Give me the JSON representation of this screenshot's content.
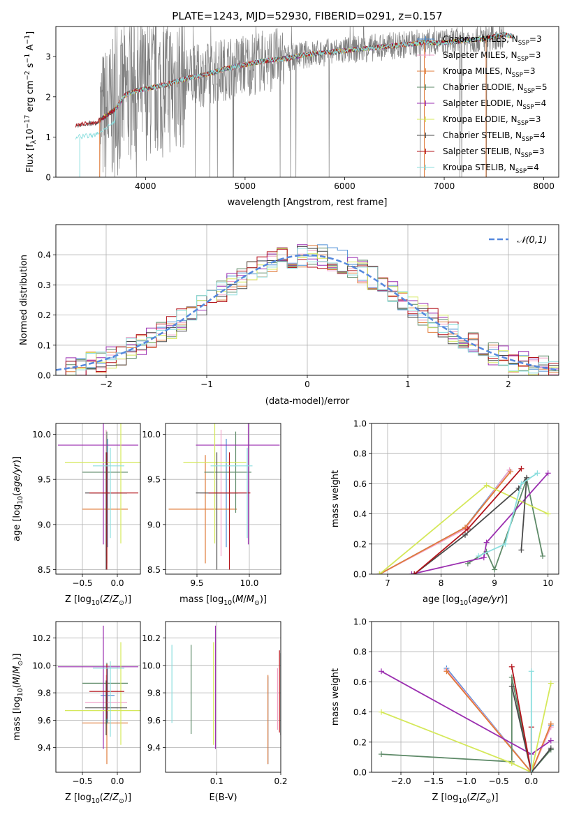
{
  "colors": {
    "Chabrier MILES": "#4c8fd6",
    "Salpeter MILES": "#f2a2c8",
    "Kroupa MILES": "#e07b39",
    "Chabrier ELODIE": "#5e8a68",
    "Salpeter ELODIE": "#9b2fb0",
    "Kroupa ELODIE": "#d5e85a",
    "Chabrier STELIB": "#4a4a4a",
    "Salpeter STELIB": "#b3141b",
    "Kroupa STELIB": "#8bdede",
    "data": "#808080",
    "normal": "#5588dd"
  },
  "chart_data": [
    {
      "id": "spectrum",
      "type": "line",
      "title": "PLATE=1243, MJD=52930, FIBERID=0291, z=0.157",
      "xlabel": "wavelength [Angstrom, rest frame]",
      "ylabel": "Flux [f_λ 10^-17 erg cm^-2 s^-1 A^-1]",
      "xlim": [
        3100,
        8150
      ],
      "ylim": [
        0,
        3.75
      ],
      "xticks": [
        4000,
        5000,
        6000,
        7000,
        8000
      ],
      "yticks": [
        0,
        1,
        2,
        3
      ],
      "legend_position": "top-right",
      "legend": [
        {
          "name": "Chabrier MILES",
          "nssp": "3"
        },
        {
          "name": "Salpeter MILES",
          "nssp": "3"
        },
        {
          "name": "Kroupa MILES",
          "nssp": "3"
        },
        {
          "name": "Chabrier ELODIE",
          "nssp": "5"
        },
        {
          "name": "Salpeter ELODIE",
          "nssp": "4"
        },
        {
          "name": "Kroupa ELODIE",
          "nssp": "3"
        },
        {
          "name": "Chabrier STELIB",
          "nssp": "4"
        },
        {
          "name": "Salpeter STELIB",
          "nssp": "3"
        },
        {
          "name": "Kroupa STELIB",
          "nssp": "4"
        }
      ],
      "model_continuum": {
        "x": [
          3300,
          3500,
          3700,
          3800,
          3900,
          4000,
          4200,
          4400,
          4600,
          4800,
          5000,
          5200,
          5400,
          5600,
          5800,
          6000,
          6200,
          6400,
          6600,
          6800,
          7000,
          7200,
          7400,
          7600,
          7800
        ],
        "y": [
          1.3,
          1.35,
          1.7,
          2.05,
          2.15,
          2.2,
          2.3,
          2.45,
          2.55,
          2.7,
          2.8,
          2.9,
          2.95,
          3.05,
          3.1,
          3.15,
          3.2,
          3.25,
          3.3,
          3.35,
          3.35,
          3.4,
          3.45,
          3.55,
          3.45
        ]
      }
    },
    {
      "id": "residuals",
      "type": "line",
      "xlabel": "(data-model)/error",
      "ylabel": "Normed distribution",
      "xlim": [
        -2.5,
        2.5
      ],
      "ylim": [
        0,
        0.5
      ],
      "xticks": [
        -2,
        -1,
        0,
        1,
        2
      ],
      "yticks": [
        0.0,
        0.1,
        0.2,
        0.3,
        0.4
      ],
      "grid": true,
      "legend_position": "top-right",
      "legend": [
        "𝒩(0,1)"
      ],
      "normal": {
        "mean": 0,
        "sigma": 1
      }
    },
    {
      "id": "z-age",
      "type": "scatter",
      "xlabel": "Z [log10(Z/Z⊙)]",
      "ylabel": "age [log10(age/yr)]",
      "xlim": [
        -0.88,
        0.33
      ],
      "ylim": [
        8.45,
        10.12
      ],
      "xticks": [
        -0.5,
        0.0
      ],
      "yticks": [
        8.5,
        9.0,
        9.5,
        10.0
      ],
      "grid": true,
      "points": [
        {
          "m": "Chabrier MILES",
          "x": -0.14,
          "xerr": [
            0.08,
            0.1
          ],
          "y": 9.35,
          "yerr": [
            0.6,
            0.6
          ]
        },
        {
          "m": "Salpeter MILES",
          "x": -0.16,
          "xerr": [
            0.3,
            0.3
          ],
          "y": 9.35,
          "yerr": [
            0.7,
            0.7
          ]
        },
        {
          "m": "Kroupa MILES",
          "x": -0.15,
          "xerr": [
            0.35,
            0.3
          ],
          "y": 9.17,
          "yerr": [
            0.6,
            0.6
          ]
        },
        {
          "m": "Chabrier ELODIE",
          "x": -0.15,
          "xerr": [
            0.35,
            0.3
          ],
          "y": 9.58,
          "yerr": [
            0.45,
            0.45
          ]
        },
        {
          "m": "Salpeter ELODIE",
          "x": -0.2,
          "xerr": [
            0.65,
            0.5
          ],
          "y": 9.88,
          "yerr": [
            1.1,
            0.5
          ]
        },
        {
          "m": "Kroupa ELODIE",
          "x": 0.05,
          "xerr": [
            0.8,
            0.3
          ],
          "y": 9.69,
          "yerr": [
            0.9,
            0.45
          ]
        },
        {
          "m": "Chabrier STELIB",
          "x": -0.16,
          "xerr": [
            0.3,
            0.3
          ],
          "y": 9.35,
          "yerr": [
            0.85,
            0.45
          ]
        },
        {
          "m": "Salpeter STELIB",
          "x": -0.15,
          "xerr": [
            0.25,
            0.45
          ],
          "y": 9.35,
          "yerr": [
            0.85,
            0.45
          ]
        },
        {
          "m": "Kroupa STELIB",
          "x": -0.1,
          "xerr": [
            0.25,
            0.2
          ],
          "y": 9.65,
          "yerr": [
            0.8,
            0.2
          ]
        }
      ]
    },
    {
      "id": "mass-age",
      "type": "scatter",
      "xlabel": "mass [log10(M/M⊙)]",
      "ylabel": "",
      "xlim": [
        9.2,
        10.3
      ],
      "ylim": [
        8.45,
        10.12
      ],
      "xticks": [
        9.5,
        10.0
      ],
      "yticks": [
        8.5,
        9.0,
        9.5,
        10.0
      ],
      "grid": true,
      "points": [
        {
          "m": "Chabrier MILES",
          "x": 9.78,
          "xerr": [
            0.2,
            0.2
          ],
          "y": 9.35,
          "yerr": [
            0.6,
            0.6
          ]
        },
        {
          "m": "Salpeter MILES",
          "x": 9.73,
          "xerr": [
            0.2,
            0.2
          ],
          "y": 9.35,
          "yerr": [
            0.7,
            0.7
          ]
        },
        {
          "m": "Kroupa MILES",
          "x": 9.58,
          "xerr": [
            0.35,
            0.3
          ],
          "y": 9.17,
          "yerr": [
            0.6,
            0.6
          ]
        },
        {
          "m": "Chabrier ELODIE",
          "x": 9.87,
          "xerr": [
            0.3,
            0.15
          ],
          "y": 9.58,
          "yerr": [
            0.45,
            0.45
          ]
        },
        {
          "m": "Salpeter ELODIE",
          "x": 9.99,
          "xerr": [
            0.5,
            0.3
          ],
          "y": 9.88,
          "yerr": [
            1.1,
            0.5
          ]
        },
        {
          "m": "Kroupa ELODIE",
          "x": 9.67,
          "xerr": [
            0.3,
            0.3
          ],
          "y": 9.69,
          "yerr": [
            0.9,
            0.45
          ]
        },
        {
          "m": "Chabrier STELIB",
          "x": 9.69,
          "xerr": [
            0.2,
            0.2
          ],
          "y": 9.35,
          "yerr": [
            0.85,
            0.45
          ]
        },
        {
          "m": "Salpeter STELIB",
          "x": 9.81,
          "xerr": [
            0.2,
            0.2
          ],
          "y": 9.35,
          "yerr": [
            0.85,
            0.45
          ]
        },
        {
          "m": "Kroupa STELIB",
          "x": 9.98,
          "xerr": [
            0.35,
            0.05
          ],
          "y": 9.65,
          "yerr": [
            0.8,
            0.2
          ]
        }
      ]
    },
    {
      "id": "age-weight",
      "type": "line",
      "xlabel": "age [log10(age/yr)]",
      "ylabel": "mass weight",
      "xlim": [
        6.7,
        10.2
      ],
      "ylim": [
        0,
        1.0
      ],
      "xticks": [
        7,
        8,
        9,
        10
      ],
      "yticks": [
        0.0,
        0.2,
        0.4,
        0.6,
        0.8,
        1.0
      ],
      "grid": true,
      "series": [
        {
          "m": "Chabrier MILES",
          "x": [
            6.85,
            8.45,
            9.28
          ],
          "y": [
            0.0,
            0.31,
            0.69
          ]
        },
        {
          "m": "Salpeter MILES",
          "x": [
            6.85,
            8.45,
            9.28
          ],
          "y": [
            0.0,
            0.3,
            0.69
          ]
        },
        {
          "m": "Kroupa MILES",
          "x": [
            6.85,
            8.45,
            9.3
          ],
          "y": [
            0.0,
            0.31,
            0.68
          ]
        },
        {
          "m": "Chabrier ELODIE",
          "x": [
            8.5,
            8.85,
            9.0,
            9.6,
            9.9
          ],
          "y": [
            0.07,
            0.15,
            0.03,
            0.63,
            0.12
          ]
        },
        {
          "m": "Salpeter ELODIE",
          "x": [
            7.45,
            8.8,
            8.85,
            10.0
          ],
          "y": [
            0.0,
            0.11,
            0.21,
            0.67
          ]
        },
        {
          "m": "Kroupa ELODIE",
          "x": [
            6.85,
            8.85,
            10.0
          ],
          "y": [
            0.0,
            0.59,
            0.4
          ]
        },
        {
          "m": "Chabrier STELIB",
          "x": [
            7.5,
            8.45,
            9.45,
            9.6,
            9.5
          ],
          "y": [
            0.0,
            0.26,
            0.57,
            0.64,
            0.16
          ]
        },
        {
          "m": "Salpeter STELIB",
          "x": [
            7.5,
            8.5,
            9.5
          ],
          "y": [
            0.0,
            0.3,
            0.7
          ]
        },
        {
          "m": "Kroupa STELIB",
          "x": [
            8.7,
            9.2,
            9.5,
            9.8
          ],
          "y": [
            0.12,
            0.2,
            0.6,
            0.67
          ]
        }
      ]
    },
    {
      "id": "z-mass",
      "type": "scatter",
      "xlabel": "Z [log10(Z/Z⊙)]",
      "ylabel": "mass [log10(M/M⊙)]",
      "xlim": [
        -0.88,
        0.33
      ],
      "ylim": [
        9.22,
        10.32
      ],
      "xticks": [
        -0.5,
        0.0
      ],
      "yticks": [
        9.4,
        9.6,
        9.8,
        10.0,
        10.2
      ],
      "grid": true,
      "points": [
        {
          "m": "Chabrier MILES",
          "x": -0.14,
          "xerr": [
            0.1,
            0.1
          ],
          "y": 9.78,
          "yerr": [
            0.2,
            0.2
          ]
        },
        {
          "m": "Salpeter MILES",
          "x": -0.16,
          "xerr": [
            0.3,
            0.3
          ],
          "y": 9.73,
          "yerr": [
            0.2,
            0.2
          ]
        },
        {
          "m": "Kroupa MILES",
          "x": -0.15,
          "xerr": [
            0.35,
            0.3
          ],
          "y": 9.58,
          "yerr": [
            0.3,
            0.35
          ]
        },
        {
          "m": "Chabrier ELODIE",
          "x": -0.15,
          "xerr": [
            0.35,
            0.3
          ],
          "y": 9.87,
          "yerr": [
            0.3,
            0.15
          ]
        },
        {
          "m": "Salpeter ELODIE",
          "x": -0.2,
          "xerr": [
            0.65,
            0.5
          ],
          "y": 9.99,
          "yerr": [
            0.6,
            0.3
          ]
        },
        {
          "m": "Kroupa ELODIE",
          "x": 0.05,
          "xerr": [
            0.8,
            0.3
          ],
          "y": 9.67,
          "yerr": [
            0.25,
            0.5
          ]
        },
        {
          "m": "Chabrier STELIB",
          "x": -0.16,
          "xerr": [
            0.3,
            0.3
          ],
          "y": 9.69,
          "yerr": [
            0.2,
            0.2
          ]
        },
        {
          "m": "Salpeter STELIB",
          "x": -0.15,
          "xerr": [
            0.25,
            0.25
          ],
          "y": 9.81,
          "yerr": [
            0.2,
            0.2
          ]
        },
        {
          "m": "Kroupa STELIB",
          "x": -0.1,
          "xerr": [
            0.25,
            0.2
          ],
          "y": 9.98,
          "yerr": [
            0.5,
            0.05
          ]
        }
      ]
    },
    {
      "id": "ebv-mass",
      "type": "scatter",
      "xlabel": "E(B-V)",
      "ylabel": "",
      "xlim": [
        0.02,
        0.2
      ],
      "ylim": [
        9.22,
        10.32
      ],
      "xticks": [
        0.1,
        0.2
      ],
      "yticks": [
        9.4,
        9.6,
        9.8,
        10.0,
        10.2
      ],
      "grid": true,
      "points": [
        {
          "m": "Chabrier MILES",
          "x": 0.18,
          "xerr": [
            0,
            0
          ],
          "y": 9.78,
          "yerr": [
            0.5,
            0.14
          ]
        },
        {
          "m": "Salpeter MILES",
          "x": 0.195,
          "xerr": [
            0,
            0
          ],
          "y": 9.73,
          "yerr": [
            0.2,
            0.25
          ]
        },
        {
          "m": "Kroupa MILES",
          "x": 0.18,
          "xerr": [
            0,
            0
          ],
          "y": 9.58,
          "yerr": [
            0.3,
            0.35
          ]
        },
        {
          "m": "Chabrier ELODIE",
          "x": 0.06,
          "xerr": [
            0,
            0
          ],
          "y": 9.8,
          "yerr": [
            0.3,
            0.35
          ]
        },
        {
          "m": "Salpeter ELODIE",
          "x": 0.098,
          "xerr": [
            0,
            0
          ],
          "y": 9.99,
          "yerr": [
            0.6,
            0.3
          ]
        },
        {
          "m": "Kroupa ELODIE",
          "x": 0.095,
          "xerr": [
            0,
            0
          ],
          "y": 9.67,
          "yerr": [
            0.25,
            0.5
          ]
        },
        {
          "m": "Chabrier STELIB",
          "x": 0.2,
          "xerr": [
            0,
            0
          ],
          "y": 9.69,
          "yerr": [
            0.2,
            0.4
          ]
        },
        {
          "m": "Salpeter STELIB",
          "x": 0.198,
          "xerr": [
            0,
            0
          ],
          "y": 9.81,
          "yerr": [
            0.3,
            0.3
          ]
        },
        {
          "m": "Kroupa STELIB",
          "x": 0.03,
          "xerr": [
            0,
            0
          ],
          "y": 9.88,
          "yerr": [
            0.3,
            0.27
          ]
        }
      ]
    },
    {
      "id": "z-weight",
      "type": "line",
      "xlabel": "Z [log10(Z/Z⊙)]",
      "ylabel": "mass weight",
      "xlim": [
        -2.45,
        0.42
      ],
      "ylim": [
        0,
        1.0
      ],
      "xticks": [
        -2.0,
        -1.5,
        -1.0,
        -0.5,
        0.0
      ],
      "yticks": [
        0.0,
        0.2,
        0.4,
        0.6,
        0.8,
        1.0
      ],
      "grid": true,
      "series": [
        {
          "m": "Chabrier MILES",
          "x": [
            -1.3,
            0.0,
            0.3
          ],
          "y": [
            0.69,
            0.0,
            0.31
          ]
        },
        {
          "m": "Salpeter MILES",
          "x": [
            -1.3,
            0.0,
            0.3
          ],
          "y": [
            0.68,
            0.0,
            0.3
          ]
        },
        {
          "m": "Kroupa MILES",
          "x": [
            -1.3,
            0.0,
            0.3
          ],
          "y": [
            0.67,
            0.0,
            0.32
          ]
        },
        {
          "m": "Chabrier ELODIE",
          "x": [
            -2.3,
            -0.3,
            -0.3,
            0.0,
            0.3
          ],
          "y": [
            0.12,
            0.07,
            0.63,
            0.0,
            0.15
          ]
        },
        {
          "m": "Salpeter ELODIE",
          "x": [
            -2.3,
            0.0,
            0.3
          ],
          "y": [
            0.67,
            0.12,
            0.21
          ]
        },
        {
          "m": "Kroupa ELODIE",
          "x": [
            -2.3,
            -0.3,
            0.0,
            0.3
          ],
          "y": [
            0.4,
            0.06,
            0.0,
            0.59
          ]
        },
        {
          "m": "Chabrier STELIB",
          "x": [
            -0.3,
            0.0,
            0.3
          ],
          "y": [
            0.57,
            0.0,
            0.16
          ]
        },
        {
          "m": "Salpeter STELIB",
          "x": [
            -0.3,
            0.0,
            0.0
          ],
          "y": [
            0.7,
            0.0,
            0.3
          ]
        },
        {
          "m": "Kroupa STELIB",
          "x": [
            0.0,
            0.0
          ],
          "y": [
            0.67,
            0.0
          ]
        }
      ]
    }
  ]
}
